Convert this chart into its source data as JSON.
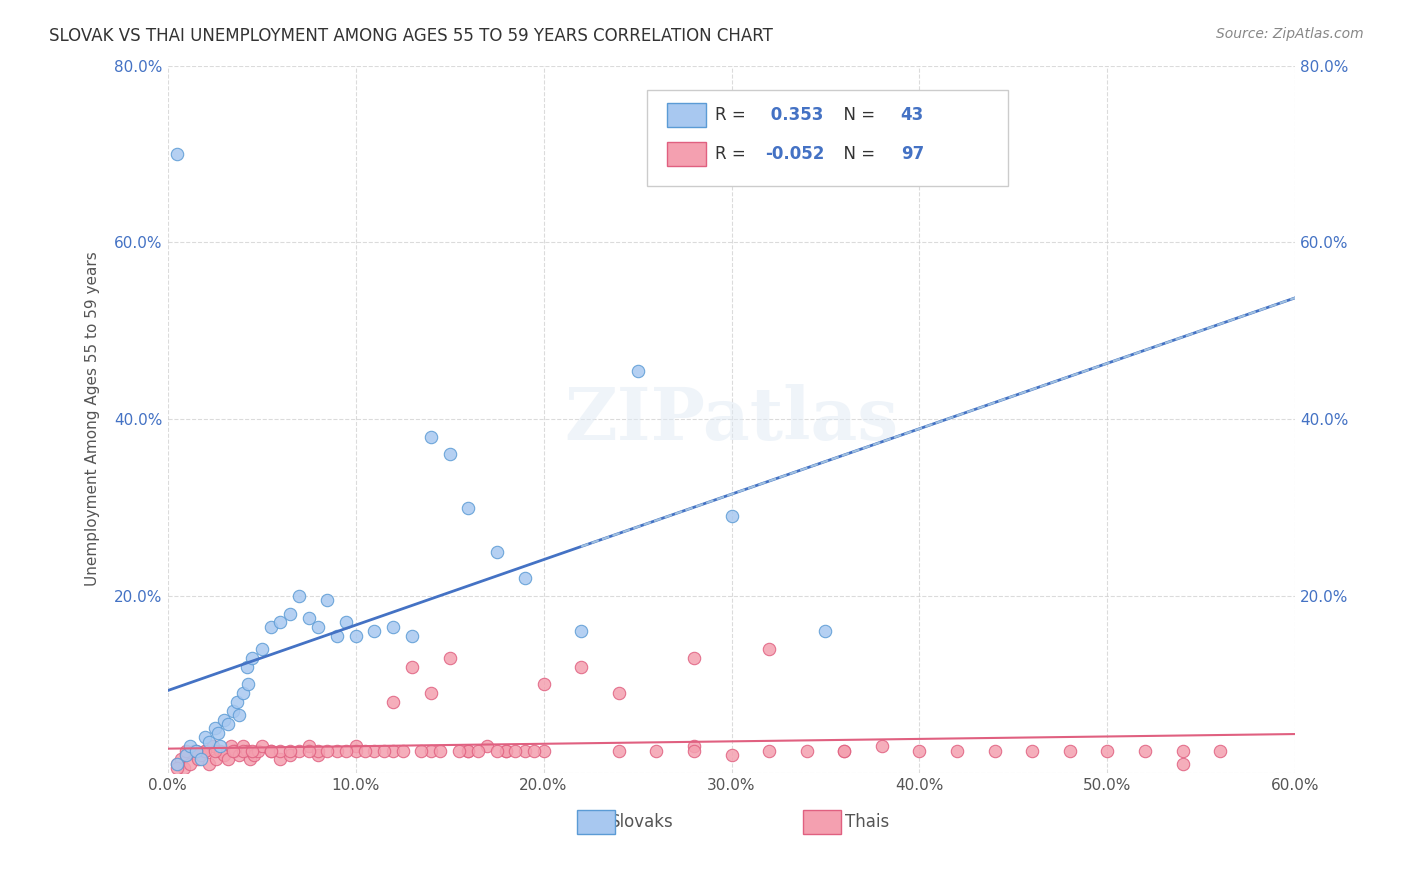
{
  "title": "SLOVAK VS THAI UNEMPLOYMENT AMONG AGES 55 TO 59 YEARS CORRELATION CHART",
  "source": "Source: ZipAtlas.com",
  "ylabel": "Unemployment Among Ages 55 to 59 years",
  "xlabel": "",
  "xlim": [
    0.0,
    0.6
  ],
  "ylim": [
    0.0,
    0.8
  ],
  "xticks": [
    0.0,
    0.1,
    0.2,
    0.3,
    0.4,
    0.5,
    0.6
  ],
  "yticks": [
    0.0,
    0.2,
    0.4,
    0.6,
    0.8
  ],
  "xtick_labels": [
    "0.0%",
    "10.0%",
    "20.0%",
    "30.0%",
    "40.0%",
    "50.0%",
    "60.0%"
  ],
  "ytick_labels": [
    "",
    "20.0%",
    "40.0%",
    "60.0%",
    "80.0%"
  ],
  "slovak_color": "#a8c8f0",
  "thai_color": "#f4a0b0",
  "slovak_edge_color": "#5b9bd5",
  "thai_edge_color": "#e06080",
  "slovak_line_color": "#4472c4",
  "thai_line_color": "#e06080",
  "dashed_line_color": "#a0c0e0",
  "legend_R_slovak": "0.353",
  "legend_N_slovak": "43",
  "legend_R_thai": "-0.052",
  "legend_N_thai": "97",
  "watermark": "ZIPatlas",
  "background_color": "#ffffff",
  "grid_color": "#cccccc",
  "slovak_scatter_x": [
    0.005,
    0.01,
    0.012,
    0.015,
    0.018,
    0.02,
    0.022,
    0.025,
    0.027,
    0.028,
    0.03,
    0.032,
    0.035,
    0.037,
    0.038,
    0.04,
    0.042,
    0.043,
    0.045,
    0.05,
    0.055,
    0.06,
    0.065,
    0.07,
    0.075,
    0.08,
    0.085,
    0.09,
    0.095,
    0.1,
    0.11,
    0.12,
    0.13,
    0.14,
    0.15,
    0.16,
    0.175,
    0.19,
    0.22,
    0.25,
    0.3,
    0.35,
    0.005
  ],
  "slovak_scatter_y": [
    0.01,
    0.02,
    0.03,
    0.025,
    0.015,
    0.04,
    0.035,
    0.05,
    0.045,
    0.03,
    0.06,
    0.055,
    0.07,
    0.08,
    0.065,
    0.09,
    0.12,
    0.1,
    0.13,
    0.14,
    0.165,
    0.17,
    0.18,
    0.2,
    0.175,
    0.165,
    0.195,
    0.155,
    0.17,
    0.155,
    0.16,
    0.165,
    0.155,
    0.38,
    0.36,
    0.3,
    0.25,
    0.22,
    0.16,
    0.455,
    0.29,
    0.16,
    0.7
  ],
  "thai_scatter_x": [
    0.005,
    0.007,
    0.009,
    0.01,
    0.012,
    0.014,
    0.016,
    0.018,
    0.02,
    0.022,
    0.024,
    0.026,
    0.028,
    0.03,
    0.032,
    0.034,
    0.036,
    0.038,
    0.04,
    0.042,
    0.044,
    0.046,
    0.048,
    0.05,
    0.055,
    0.06,
    0.065,
    0.07,
    0.075,
    0.08,
    0.09,
    0.1,
    0.11,
    0.12,
    0.13,
    0.14,
    0.15,
    0.16,
    0.17,
    0.18,
    0.19,
    0.2,
    0.22,
    0.24,
    0.26,
    0.28,
    0.3,
    0.32,
    0.34,
    0.36,
    0.38,
    0.4,
    0.42,
    0.44,
    0.46,
    0.48,
    0.5,
    0.52,
    0.54,
    0.56,
    0.28,
    0.32,
    0.36,
    0.28,
    0.24,
    0.2,
    0.18,
    0.16,
    0.14,
    0.12,
    0.1,
    0.08,
    0.06,
    0.04,
    0.02,
    0.005,
    0.01,
    0.015,
    0.025,
    0.035,
    0.045,
    0.055,
    0.065,
    0.075,
    0.085,
    0.095,
    0.105,
    0.115,
    0.125,
    0.135,
    0.145,
    0.155,
    0.165,
    0.175,
    0.185,
    0.195,
    0.54
  ],
  "thai_scatter_y": [
    0.01,
    0.015,
    0.005,
    0.02,
    0.01,
    0.025,
    0.015,
    0.02,
    0.025,
    0.01,
    0.03,
    0.015,
    0.025,
    0.02,
    0.015,
    0.03,
    0.025,
    0.02,
    0.03,
    0.025,
    0.015,
    0.02,
    0.025,
    0.03,
    0.025,
    0.015,
    0.02,
    0.025,
    0.03,
    0.02,
    0.025,
    0.03,
    0.025,
    0.08,
    0.12,
    0.09,
    0.13,
    0.025,
    0.03,
    0.025,
    0.025,
    0.1,
    0.12,
    0.09,
    0.025,
    0.03,
    0.02,
    0.025,
    0.025,
    0.025,
    0.03,
    0.025,
    0.025,
    0.025,
    0.025,
    0.025,
    0.025,
    0.025,
    0.025,
    0.025,
    0.13,
    0.14,
    0.025,
    0.025,
    0.025,
    0.025,
    0.025,
    0.025,
    0.025,
    0.025,
    0.025,
    0.025,
    0.025,
    0.025,
    0.025,
    0.005,
    0.025,
    0.025,
    0.025,
    0.025,
    0.025,
    0.025,
    0.025,
    0.025,
    0.025,
    0.025,
    0.025,
    0.025,
    0.025,
    0.025,
    0.025,
    0.025,
    0.025,
    0.025,
    0.025,
    0.025,
    0.01
  ]
}
